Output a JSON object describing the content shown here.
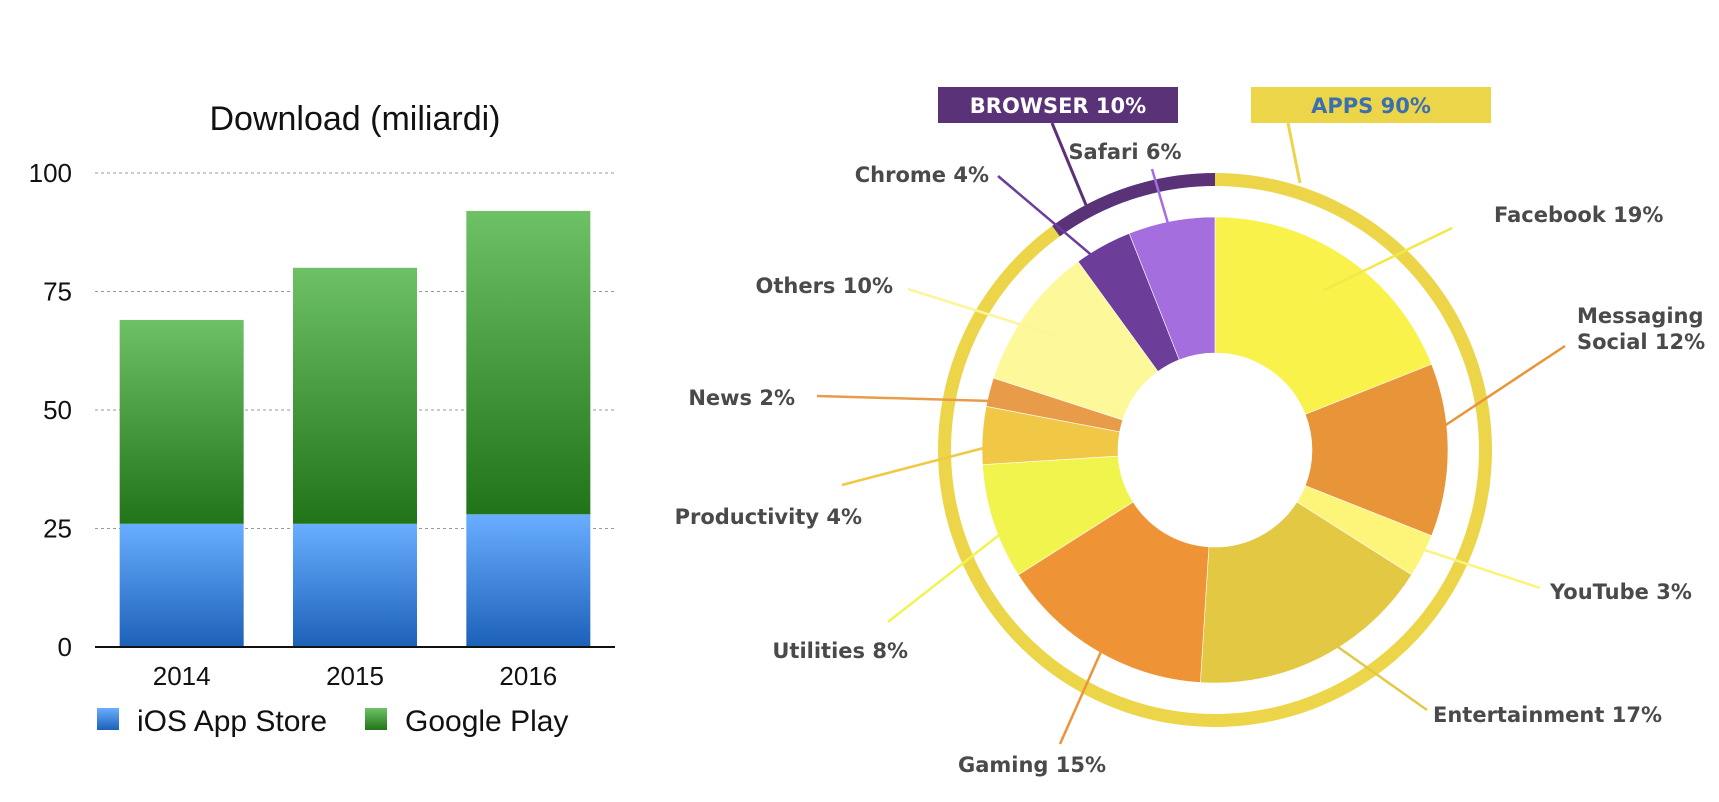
{
  "charts": [
    {
      "type": "bar",
      "stacked": true,
      "title": "Download (miliardi)",
      "categories": [
        "2014",
        "2015",
        "2016"
      ],
      "series": [
        {
          "name": "iOS App Store",
          "values": [
            26,
            26,
            28
          ],
          "color": "#4a8fe6"
        },
        {
          "name": "Google Play",
          "values": [
            43,
            54,
            64
          ],
          "color": "#4fa246"
        }
      ],
      "ylim": [
        0,
        100
      ],
      "yticks": [
        "0",
        "25",
        "50",
        "75",
        "100"
      ],
      "grid": true,
      "legend_position": "bottom"
    },
    {
      "type": "pie",
      "variant": "nested-donut",
      "outer_ring": [
        {
          "label": "APPS 90%",
          "value": 90,
          "color": "#edd54a",
          "text_color": "#3a6fb0"
        },
        {
          "label": "BROWSER 10%",
          "value": 10,
          "color": "#5a3278",
          "text_color": "#ffffff"
        }
      ],
      "slices": [
        {
          "label": "Facebook 19%",
          "value": 19,
          "color": "#f9f24a"
        },
        {
          "label": "Messaging\nSocial 12%",
          "value": 12,
          "color": "#e8953a"
        },
        {
          "label": "YouTube 3%",
          "value": 3,
          "color": "#fdf579"
        },
        {
          "label": "Entertainment 17%",
          "value": 17,
          "color": "#e3c844"
        },
        {
          "label": "Gaming 15%",
          "value": 15,
          "color": "#ee9436"
        },
        {
          "label": "Utilities 8%",
          "value": 8,
          "color": "#f2f44e"
        },
        {
          "label": "Productivity 4%",
          "value": 4,
          "color": "#f1c846"
        },
        {
          "label": "News 2%",
          "value": 2,
          "color": "#e89c4a"
        },
        {
          "label": "Others 10%",
          "value": 10,
          "color": "#fdf99a"
        },
        {
          "label": "Chrome 4%",
          "value": 4,
          "color": "#6c3d99"
        },
        {
          "label": "Safari 6%",
          "value": 6,
          "color": "#a46ede"
        }
      ]
    }
  ]
}
